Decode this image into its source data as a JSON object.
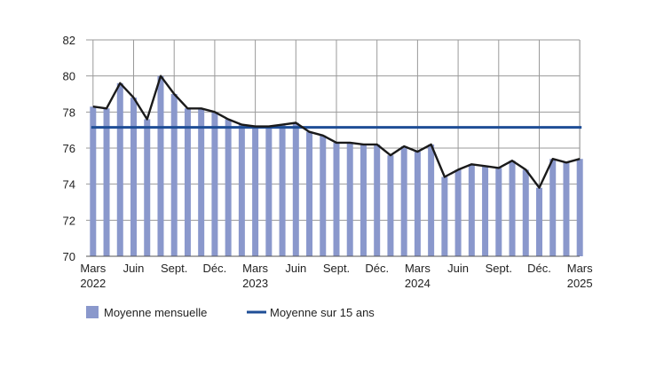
{
  "chart_data": {
    "type": "bar",
    "title": "",
    "xlabel": "",
    "ylabel": "",
    "ylim": [
      70,
      82
    ],
    "yticks": [
      70,
      72,
      74,
      76,
      78,
      80,
      82
    ],
    "grid": true,
    "legend_position": "bottom-left",
    "x_tick_labels": [
      {
        "index": 0,
        "lines": [
          "Mars",
          "2022"
        ]
      },
      {
        "index": 3,
        "lines": [
          "Juin"
        ]
      },
      {
        "index": 6,
        "lines": [
          "Sept."
        ]
      },
      {
        "index": 9,
        "lines": [
          "Déc."
        ]
      },
      {
        "index": 12,
        "lines": [
          "Mars",
          "2023"
        ]
      },
      {
        "index": 15,
        "lines": [
          "Juin"
        ]
      },
      {
        "index": 18,
        "lines": [
          "Sept."
        ]
      },
      {
        "index": 21,
        "lines": [
          "Déc."
        ]
      },
      {
        "index": 24,
        "lines": [
          "Mars",
          "2024"
        ]
      },
      {
        "index": 27,
        "lines": [
          "Juin"
        ]
      },
      {
        "index": 30,
        "lines": [
          "Sept."
        ]
      },
      {
        "index": 33,
        "lines": [
          "Déc."
        ]
      },
      {
        "index": 36,
        "lines": [
          "Mars",
          "2025"
        ]
      }
    ],
    "series": [
      {
        "name": "Moyenne mensuelle",
        "kind": "bar-and-line",
        "bar_color": "#8a98cc",
        "line_color": "#1a1a1a",
        "values": [
          78.3,
          78.2,
          79.6,
          78.8,
          77.6,
          80.0,
          79.0,
          78.2,
          78.2,
          78.0,
          77.6,
          77.3,
          77.2,
          77.2,
          77.3,
          77.4,
          76.9,
          76.7,
          76.3,
          76.3,
          76.2,
          76.2,
          75.6,
          76.1,
          75.8,
          76.2,
          74.4,
          74.8,
          75.1,
          75.0,
          74.9,
          75.3,
          74.8,
          73.8,
          75.4,
          75.2,
          75.4
        ]
      },
      {
        "name": "Moyenne sur 15 ans",
        "kind": "reference-line",
        "color": "#1f4e96",
        "value": 77.15
      }
    ]
  },
  "legend": {
    "items": [
      {
        "label": "Moyenne mensuelle",
        "color": "#8a98cc",
        "symbol": "square"
      },
      {
        "label": "Moyenne sur 15 ans",
        "color": "#1f4e96",
        "symbol": "line"
      }
    ]
  }
}
